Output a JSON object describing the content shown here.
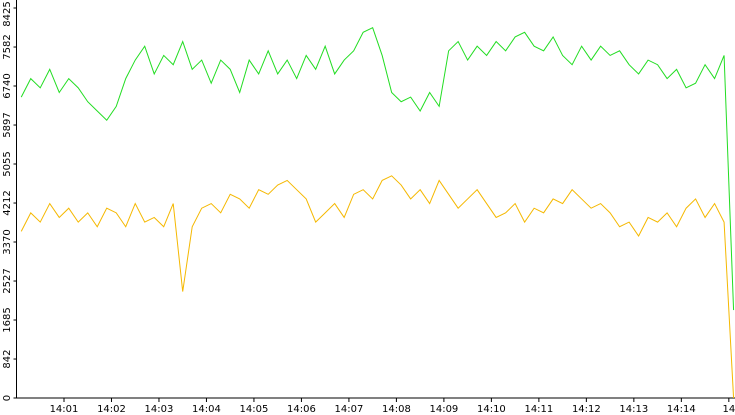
{
  "chart_data": {
    "type": "line",
    "x": [
      0.1,
      0.3,
      0.5,
      0.7,
      0.9,
      1.1,
      1.3,
      1.5,
      1.7,
      1.9,
      2.1,
      2.3,
      2.5,
      2.7,
      2.9,
      3.1,
      3.3,
      3.5,
      3.7,
      3.9,
      4.1,
      4.3,
      4.5,
      4.7,
      4.9,
      5.1,
      5.3,
      5.5,
      5.7,
      5.9,
      6.1,
      6.3,
      6.5,
      6.7,
      6.9,
      7.1,
      7.3,
      7.5,
      7.7,
      7.9,
      8.1,
      8.3,
      8.5,
      8.7,
      8.9,
      9.1,
      9.3,
      9.5,
      9.7,
      9.9,
      10.1,
      10.3,
      10.5,
      10.7,
      10.9,
      11.1,
      11.3,
      11.5,
      11.7,
      11.9,
      12.1,
      12.3,
      12.5,
      12.7,
      12.9,
      13.1,
      13.3,
      13.5,
      13.7,
      13.9,
      14.1,
      14.3,
      14.5,
      14.7,
      14.9,
      15.1
    ],
    "series": [
      {
        "color": "#22dd22",
        "values": [
          6500,
          6900,
          6700,
          7100,
          6600,
          6900,
          6700,
          6400,
          6200,
          6000,
          6300,
          6900,
          7300,
          7600,
          7000,
          7400,
          7200,
          7700,
          7100,
          7300,
          6800,
          7300,
          7100,
          6600,
          7300,
          7000,
          7500,
          7000,
          7300,
          6900,
          7400,
          7100,
          7600,
          7000,
          7300,
          7500,
          7900,
          8000,
          7400,
          6600,
          6400,
          6500,
          6200,
          6600,
          6300,
          7500,
          7700,
          7300,
          7600,
          7400,
          7700,
          7500,
          7800,
          7900,
          7600,
          7500,
          7800,
          7400,
          7200,
          7600,
          7300,
          7600,
          7400,
          7500,
          7200,
          7000,
          7300,
          7200,
          6900,
          7100,
          6700,
          6800,
          7200,
          6900,
          7400,
          1900
        ]
      },
      {
        "color": "#f5b800",
        "values": [
          3600,
          4000,
          3800,
          4200,
          3900,
          4100,
          3800,
          4000,
          3700,
          4100,
          4000,
          3700,
          4200,
          3800,
          3900,
          3700,
          4200,
          2300,
          3700,
          4100,
          4200,
          4000,
          4400,
          4300,
          4100,
          4500,
          4400,
          4600,
          4700,
          4500,
          4300,
          3800,
          4000,
          4200,
          3900,
          4400,
          4500,
          4300,
          4700,
          4800,
          4600,
          4300,
          4500,
          4200,
          4700,
          4400,
          4100,
          4300,
          4500,
          4200,
          3900,
          4000,
          4200,
          3800,
          4100,
          4000,
          4300,
          4200,
          4500,
          4300,
          4100,
          4200,
          4000,
          3700,
          3800,
          3500,
          3900,
          3800,
          4000,
          3700,
          4100,
          4300,
          3900,
          4200,
          3800,
          0
        ]
      }
    ],
    "xlim": [
      0,
      15.13
    ],
    "xticks": [
      {
        "value": 1,
        "label": "14:01"
      },
      {
        "value": 2,
        "label": "14:02"
      },
      {
        "value": 3,
        "label": "14:03"
      },
      {
        "value": 4,
        "label": "14:04"
      },
      {
        "value": 5,
        "label": "14:05"
      },
      {
        "value": 6,
        "label": "14:06"
      },
      {
        "value": 7,
        "label": "14:07"
      },
      {
        "value": 8,
        "label": "14:08"
      },
      {
        "value": 9,
        "label": "14:09"
      },
      {
        "value": 10,
        "label": "14:10"
      },
      {
        "value": 11,
        "label": "14:11"
      },
      {
        "value": 12,
        "label": "14:12"
      },
      {
        "value": 13,
        "label": "14:13"
      },
      {
        "value": 14,
        "label": "14:14"
      },
      {
        "value": 15,
        "label": "14"
      }
    ],
    "ylim": [
      0,
      8425
    ],
    "yticks": [
      0,
      842,
      1685,
      2527,
      3370,
      4212,
      5055,
      5897,
      6740,
      7582,
      8425
    ]
  }
}
